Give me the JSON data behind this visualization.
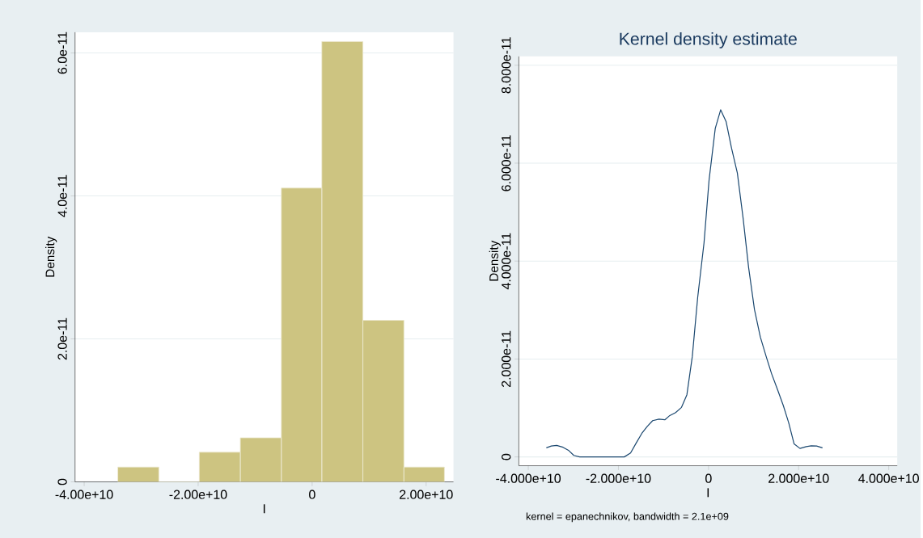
{
  "chart_data": [
    {
      "type": "histogram",
      "xlabel": "I",
      "ylabel": "Density",
      "color": "#cdc481",
      "grid": "y",
      "bins": [
        -34100000000.0,
        -26900000000.0,
        -19800000000.0,
        -12600000000.0,
        -5400000000.0,
        1700000000.0,
        8900000000.0,
        16100000000.0,
        23200000000.0
      ],
      "values": [
        2.07e-12,
        0,
        4.14e-12,
        6.16e-12,
        4.11e-11,
        6.16e-11,
        2.26e-11,
        2.07e-12
      ],
      "xlim": [
        -41600000000.0,
        24800000000.0
      ],
      "ylim": [
        0,
        6.29e-11
      ],
      "xticks": [
        {
          "value": -40000000000.0,
          "label": "-4.00e+10"
        },
        {
          "value": -20000000000.0,
          "label": "-2.00e+10"
        },
        0,
        {
          "value": 20000000000.0,
          "label": "2.00e+10"
        }
      ],
      "yticks": [
        0,
        {
          "value": 2e-11,
          "label": "2.0e-11"
        },
        {
          "value": 4e-11,
          "label": "4.0e-11"
        },
        {
          "value": 6e-11,
          "label": "6.0e-11"
        }
      ]
    },
    {
      "type": "line",
      "title": "Kernel density estimate",
      "xlabel": "I",
      "ylabel": "Density",
      "color": "#1a476f",
      "grid": "y",
      "annotations": [
        "kernel = epanechnikov, bandwidth =  2.1e+09"
      ],
      "x": [
        -36000000000.0,
        -34900000000.0,
        -33700000000.0,
        -32300000000.0,
        -31000000000.0,
        -29900000000.0,
        -28600000000.0,
        -18700000000.0,
        -17300000000.0,
        -16100000000.0,
        -14800000000.0,
        -13600000000.0,
        -12400000000.0,
        -11000000000.0,
        -9700000000.0,
        -8700000000.0,
        -7300000000.0,
        -6000000000.0,
        -4800000000.0,
        -3600000000.0,
        -2400000000.0,
        -1000000000.0,
        130000000.0,
        1500000000.0,
        2700000000.0,
        3900000000.0,
        5100000000.0,
        6400000000.0,
        7700000000.0,
        8900000000.0,
        10200000000.0,
        11500000000.0,
        12800000000.0,
        14000000000.0,
        15300000000.0,
        16600000000.0,
        17800000000.0,
        19000000000.0,
        20300000000.0,
        21700000000.0,
        22800000000.0,
        24000000000.0,
        25300000000.0
      ],
      "values": [
        1.85e-12,
        2.22e-12,
        2.34e-12,
        1.97e-12,
        1.29e-12,
        3.1e-13,
        0,
        0,
        8e-13,
        2.77e-12,
        4.81e-12,
        6.23e-12,
        7.4e-12,
        7.71e-12,
        7.58e-12,
        8.38e-12,
        9.06e-12,
        1.011e-11,
        1.27e-11,
        2.05e-11,
        3.26e-11,
        4.37e-11,
        5.66e-11,
        6.71e-11,
        7.09e-11,
        6.85e-11,
        6.31e-11,
        5.8e-11,
        4.86e-11,
        3.87e-11,
        3.01e-11,
        2.45e-11,
        2.05e-11,
        1.7e-11,
        1.38e-11,
        1.05e-11,
        6.97e-12,
        2.65e-12,
        1.73e-12,
        2.1e-12,
        2.28e-12,
        2.22e-12,
        1.85e-12
      ],
      "xlim": [
        -42100000000.0,
        41900000000.0
      ],
      "ylim": [
        -1.8e-12,
        8.18e-11
      ],
      "xticks": [
        {
          "value": -40000000000.0,
          "label": "-4.000e+10"
        },
        {
          "value": -20000000000.0,
          "label": "-2.000e+10"
        },
        0,
        {
          "value": 20000000000.0,
          "label": "2.000e+10"
        },
        {
          "value": 40000000000.0,
          "label": "4.000e+10"
        }
      ],
      "yticks": [
        0,
        {
          "value": 2e-11,
          "label": "2.000e-11"
        },
        {
          "value": 4e-11,
          "label": "4.000e-11"
        },
        {
          "value": 6e-11,
          "label": "6.000e-11"
        },
        {
          "value": 8e-11,
          "label": "8.000e-11"
        }
      ]
    }
  ]
}
